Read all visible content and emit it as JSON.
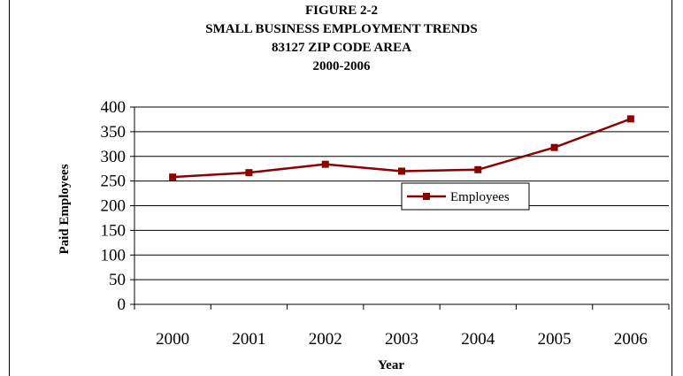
{
  "chart_data": {
    "type": "line",
    "title_lines": [
      "FIGURE 2-2",
      "SMALL BUSINESS EMPLOYMENT TRENDS",
      "83127 ZIP CODE AREA",
      "2000-2006"
    ],
    "xlabel": "Year",
    "ylabel": "Paid Employees",
    "categories": [
      "2000",
      "2001",
      "2002",
      "2003",
      "2004",
      "2005",
      "2006"
    ],
    "series": [
      {
        "name": "Employees",
        "values": [
          258,
          267,
          284,
          270,
          273,
          318,
          376
        ],
        "color": "#8B0000"
      }
    ],
    "ylim": [
      0,
      400
    ],
    "yticks": [
      0,
      50,
      100,
      150,
      200,
      250,
      300,
      350,
      400
    ],
    "grid": true,
    "legend_position": "center-right"
  }
}
